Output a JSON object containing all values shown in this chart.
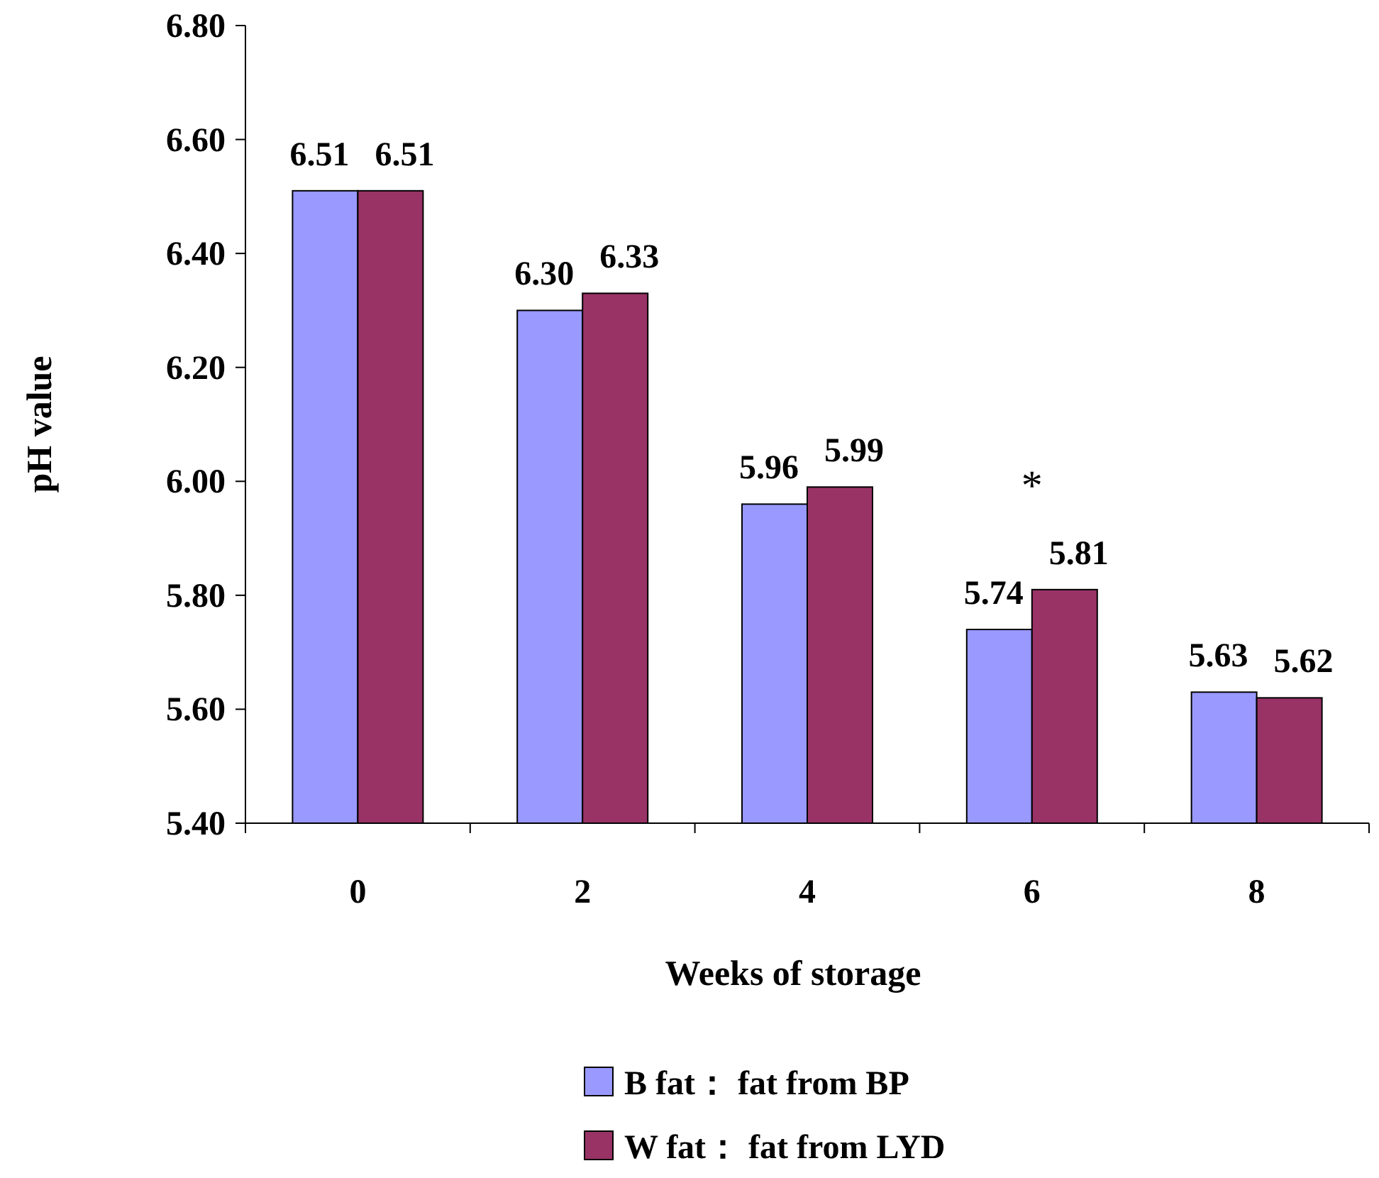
{
  "chart_data": {
    "type": "bar",
    "xlabel": "Weeks of storage",
    "ylabel": "pH value",
    "categories": [
      "0",
      "2",
      "4",
      "6",
      "8"
    ],
    "series": [
      {
        "name": "B fat： fat from BP",
        "color": "#9999ff",
        "values": [
          6.51,
          6.3,
          5.96,
          5.74,
          5.63
        ],
        "value_labels": [
          "6.51",
          "6.30",
          "5.96",
          "5.74",
          "5.63"
        ]
      },
      {
        "name": "W fat： fat from LYD",
        "color": "#993366",
        "values": [
          6.51,
          6.33,
          5.99,
          5.81,
          5.62
        ],
        "value_labels": [
          "6.51",
          "6.33",
          "5.99",
          "5.81",
          "5.62"
        ]
      }
    ],
    "ylim": [
      5.4,
      6.8
    ],
    "yticks": [
      {
        "value": 5.4,
        "label": "5.40"
      },
      {
        "value": 5.6,
        "label": "5.60"
      },
      {
        "value": 5.8,
        "label": "5.80"
      },
      {
        "value": 6.0,
        "label": "6.00"
      },
      {
        "value": 6.2,
        "label": "6.20"
      },
      {
        "value": 6.4,
        "label": "6.40"
      },
      {
        "value": 6.6,
        "label": "6.60"
      },
      {
        "value": 6.8,
        "label": "6.80"
      }
    ],
    "annotations": [
      "*"
    ],
    "legend": "bottom"
  }
}
